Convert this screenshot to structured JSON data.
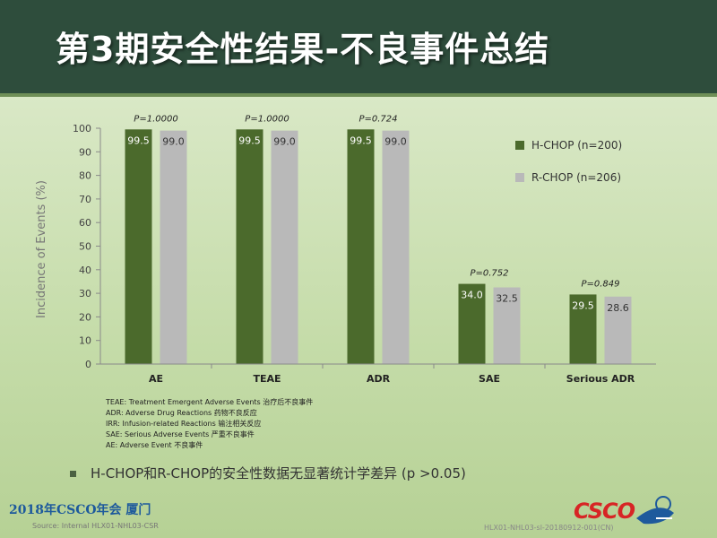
{
  "header": {
    "title": "第3期安全性结果-不良事件总结"
  },
  "chart_data": {
    "type": "bar",
    "categories": [
      "AE",
      "TEAE",
      "ADR",
      "SAE",
      "Serious ADR"
    ],
    "series": [
      {
        "name": "H-CHOP (n=200)",
        "values": [
          99.5,
          99.5,
          99.5,
          34.0,
          29.5
        ],
        "color": "#4b6a2c"
      },
      {
        "name": "R-CHOP (n=206)",
        "values": [
          99.0,
          99.0,
          99.0,
          32.5,
          28.6
        ],
        "color": "#b9b9b9"
      }
    ],
    "data_labels": [
      [
        "99.5",
        "99.5",
        "99.5",
        "34.0",
        "29.5"
      ],
      [
        "99.0",
        "99.0",
        "99.0",
        "32.5",
        "28.6"
      ]
    ],
    "p_values": [
      "P=1.0000",
      "P=1.0000",
      "P=0.724",
      "P=0.752",
      "P=0.849"
    ],
    "ylabel": "Incidence of Events (%)",
    "ylim": [
      0,
      100
    ],
    "yticks": [
      0,
      10,
      20,
      30,
      40,
      50,
      60,
      70,
      80,
      90,
      100
    ],
    "legend_position": "right"
  },
  "notes": [
    "TEAE: Treatment Emergent Adverse Events 治疗后不良事件",
    "ADR: Adverse Drug Reactions 药物不良反应",
    "IRR: Infusion-related Reactions 输注相关反应",
    "SAE: Serious Adverse Events 严重不良事件",
    "AE: Adverse Event 不良事件"
  ],
  "summary": "H-CHOP和R-CHOP的安全性数据无显著统计学差异 (p >0.05)",
  "footer": {
    "event": "2018年CSCO年会   厦门",
    "source": "Source: Internal HLX01-NHL03-CSR",
    "code": "HLX01-NHL03-sl-20180912-001(CN)",
    "logo": "CSCO"
  }
}
